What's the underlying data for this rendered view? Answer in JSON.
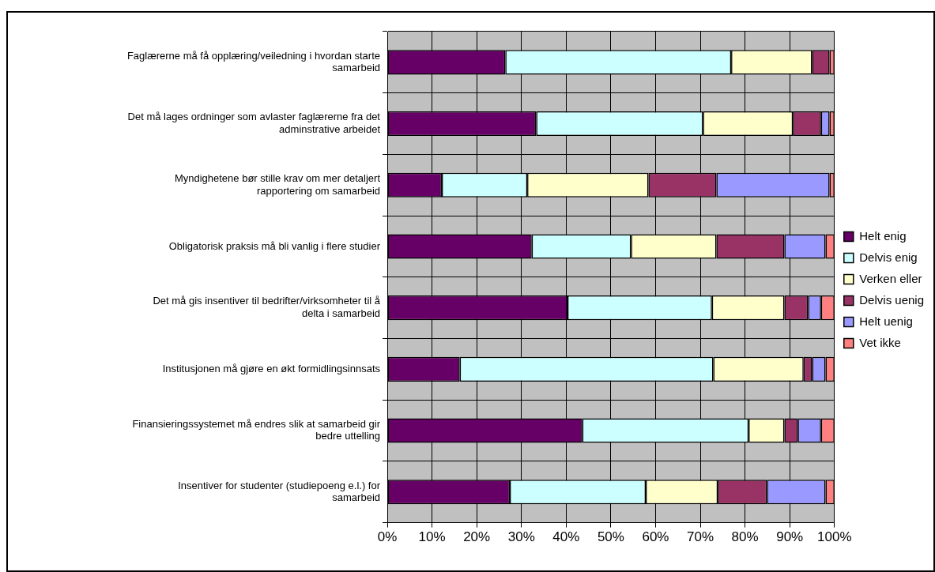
{
  "chart_data": {
    "type": "bar",
    "orientation": "horizontal",
    "stacked": true,
    "categories": [
      "Faglærerne må få opplæring/veiledning i hvordan starte samarbeid",
      "Det må lages ordninger som avlaster faglærerne fra det adminstrative arbeidet",
      "Myndighetene bør stille krav om mer detaljert rapportering om samarbeid",
      "Obligatorisk praksis må bli vanlig i flere studier",
      "Det må gis insentiver til bedrifter/virksomheter til å delta i samarbeid",
      "Institusjonen må gjøre en økt formidlingsinnsats",
      "Finansieringssystemet må endres slik at samarbeid gir bedre uttelling",
      "Insentiver for studenter (studiepoeng e.l.) for samarbeid"
    ],
    "series": [
      {
        "name": "Helt enig",
        "color": "#660066",
        "values": [
          26.4,
          33.3,
          12.2,
          32.3,
          40.3,
          16.2,
          43.6,
          27.4
        ]
      },
      {
        "name": "Delvis enig",
        "color": "#ccffff",
        "values": [
          50.5,
          37.3,
          19.1,
          22.2,
          32.3,
          56.7,
          37.2,
          30.4
        ]
      },
      {
        "name": "Verken eller",
        "color": "#ffffcc",
        "values": [
          18.1,
          20.1,
          27.1,
          19.1,
          16.2,
          20.2,
          8.0,
          16.1
        ]
      },
      {
        "name": "Delvis uenig",
        "color": "#993366",
        "values": [
          3.9,
          6.3,
          15.2,
          15.2,
          5.3,
          1.9,
          3.0,
          11.0
        ]
      },
      {
        "name": "Helt uenig",
        "color": "#9999ff",
        "values": [
          0,
          1.9,
          25.3,
          9.2,
          2.9,
          3.0,
          5.2,
          13.1
        ]
      },
      {
        "name": "Vet ikke",
        "color": "#ff8080",
        "values": [
          1.1,
          1.1,
          1.1,
          2.0,
          3.0,
          2.0,
          3.0,
          2.0
        ]
      }
    ],
    "xlim": [
      0,
      100
    ],
    "xticks": [
      {
        "value": 0,
        "label": "0%"
      },
      {
        "value": 10,
        "label": "10%"
      },
      {
        "value": 20,
        "label": "20%"
      },
      {
        "value": 30,
        "label": "30%"
      },
      {
        "value": 40,
        "label": "40%"
      },
      {
        "value": 50,
        "label": "50%"
      },
      {
        "value": 60,
        "label": "60%"
      },
      {
        "value": 70,
        "label": "70%"
      },
      {
        "value": 80,
        "label": "80%"
      },
      {
        "value": 90,
        "label": "90%"
      },
      {
        "value": 100,
        "label": "100%"
      }
    ],
    "grid": true,
    "legend": "right"
  }
}
